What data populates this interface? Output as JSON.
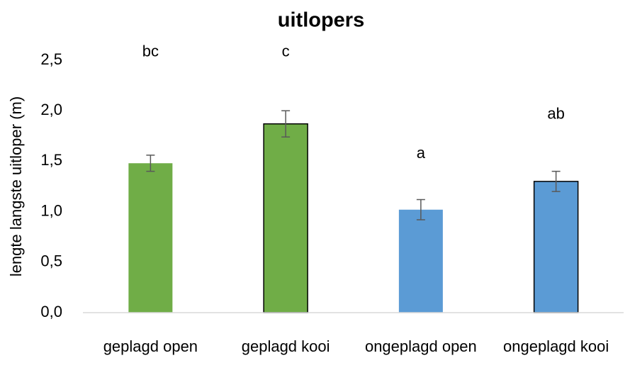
{
  "chart_data": {
    "type": "bar",
    "title": "uitlopers",
    "y_label": "lengte langste uitloper (m)",
    "categories": [
      "geplagd open",
      "geplagd kooi",
      "ongeplagd open",
      "ongeplagd kooi"
    ],
    "values": [
      1.48,
      1.87,
      1.02,
      1.3
    ],
    "errors": [
      0.08,
      0.13,
      0.1,
      0.1
    ],
    "colors": [
      "#70ad47",
      "#70ad47",
      "#5b9bd5",
      "#5b9bd5"
    ],
    "edgecolors": [
      null,
      "#000000",
      null,
      "#000000"
    ],
    "annotations": [
      {
        "text": "bc",
        "category": "geplagd open",
        "y": 2.58
      },
      {
        "text": "c",
        "category": "geplagd kooi",
        "y": 2.58
      },
      {
        "text": "a",
        "category": "ongeplagd open",
        "y": 1.57
      },
      {
        "text": "ab",
        "category": "ongeplagd kooi",
        "y": 1.96
      }
    ],
    "ylim": [
      0,
      2.5
    ],
    "yticks": [
      {
        "value": 0,
        "label": "0,0"
      },
      {
        "value": 0.5,
        "label": "0,5"
      },
      {
        "value": 1,
        "label": "1,0"
      },
      {
        "value": 1.5,
        "label": "1,5"
      },
      {
        "value": 2,
        "label": "2,0"
      },
      {
        "value": 2.5,
        "label": "2,5"
      }
    ],
    "grid": false
  }
}
